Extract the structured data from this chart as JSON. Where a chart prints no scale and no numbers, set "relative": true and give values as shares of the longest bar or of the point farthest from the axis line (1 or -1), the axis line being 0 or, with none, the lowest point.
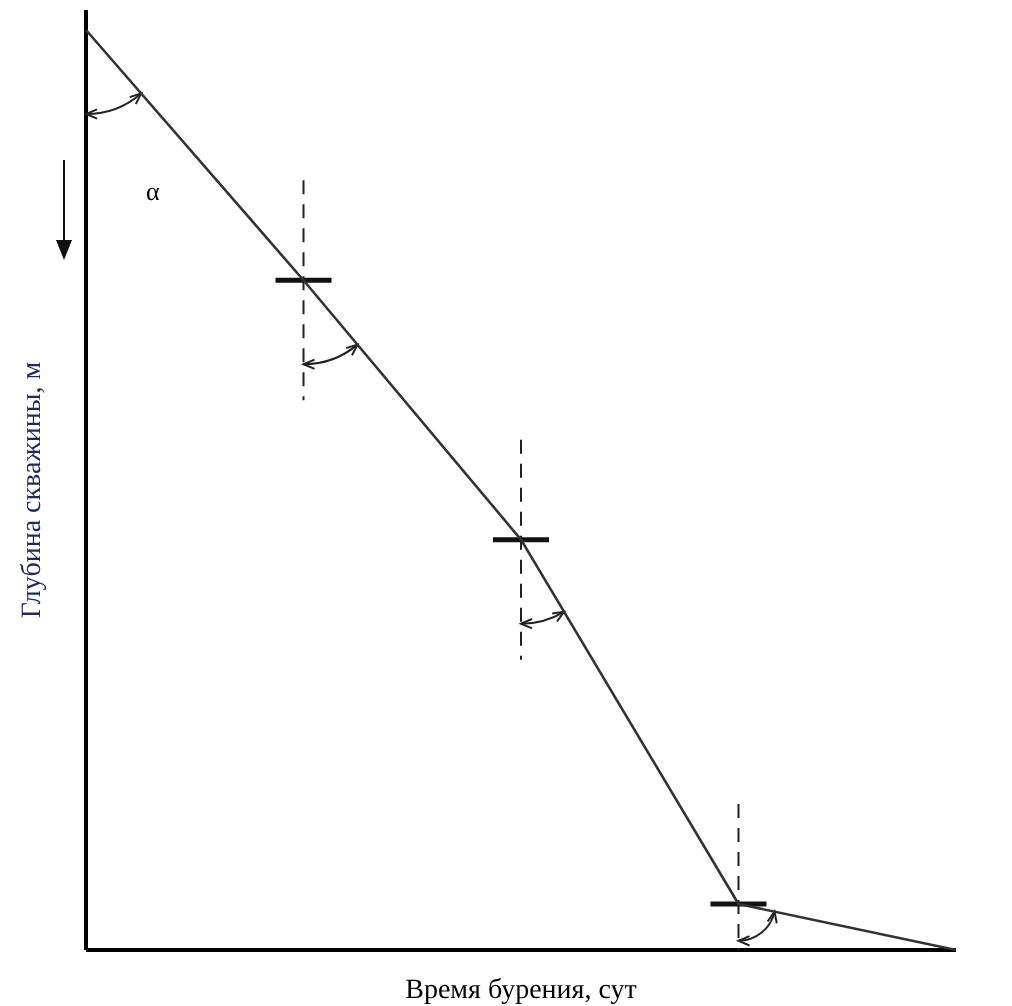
{
  "chart_data": {
    "type": "line",
    "relative": true,
    "xlabel": "Время бурения, сут",
    "ylabel": "Глубина скважины, м",
    "categories": [
      null,
      null,
      null,
      null,
      null
    ],
    "series": [
      {
        "color": "#333333",
        "values": [
          1,
          0.728,
          0.446,
          0.05,
          0
        ]
      }
    ],
    "annotations": [
      "α"
    ],
    "marker": "none",
    "line_style": "solid"
  }
}
